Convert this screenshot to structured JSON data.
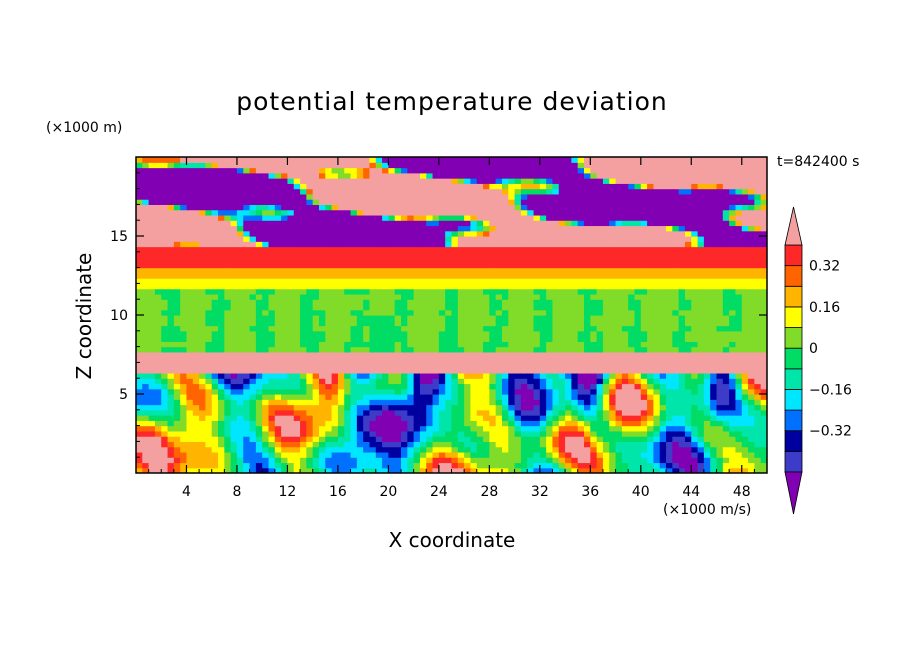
{
  "chart_data": {
    "type": "heatmap",
    "title": "potential temperature deviation",
    "xlabel": "X coordinate",
    "ylabel": "Z coordinate",
    "x_unit": "(×1000 m/s)",
    "y_unit": "(×1000 m)",
    "time_label": "t=842400 s",
    "xlim": [
      0,
      50
    ],
    "ylim": [
      0,
      20
    ],
    "x_ticks": [
      4,
      8,
      12,
      16,
      20,
      24,
      28,
      32,
      36,
      40,
      44,
      48
    ],
    "y_ticks": [
      5,
      10,
      15
    ],
    "colorbar": {
      "levels": [
        -0.48,
        -0.4,
        -0.32,
        -0.24,
        -0.16,
        -0.08,
        0,
        0.08,
        0.16,
        0.24,
        0.32,
        0.4
      ],
      "tick_labels": [
        "0.32",
        "0.16",
        "0",
        "−0.16",
        "−0.32"
      ],
      "tick_values": [
        0.32,
        0.16,
        0,
        -0.16,
        -0.32
      ],
      "colors": [
        "#8200b4",
        "#3c3cc8",
        "#0000a0",
        "#0070ff",
        "#00e6ff",
        "#00e6aa",
        "#00dc64",
        "#80dc28",
        "#ffff00",
        "#ffb400",
        "#ff6400",
        "#ff2828",
        "#f5a0a0"
      ],
      "extend": "both"
    },
    "bands": [
      {
        "z": [
          0,
          6.5
        ],
        "description": "convective eddies, mixed values -0.4 to +0.4"
      },
      {
        "z": [
          6.5,
          7.7
        ],
        "value": 0.45
      },
      {
        "z": [
          7.7,
          11.8
        ],
        "value": 0.0
      },
      {
        "z": [
          11.8,
          13.0
        ],
        "value": 0.16
      },
      {
        "z": [
          13.0,
          14.4
        ],
        "value": 0.36
      },
      {
        "z": [
          14.4,
          20
        ],
        "description": "alternating strong positive / negative patches"
      }
    ]
  }
}
